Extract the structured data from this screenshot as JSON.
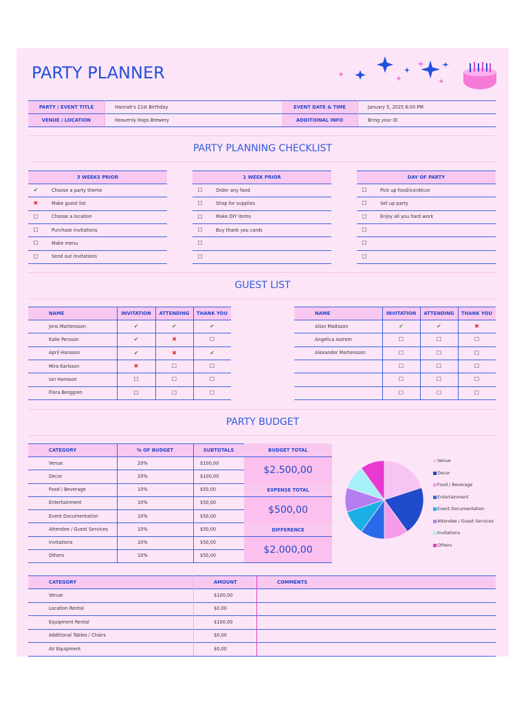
{
  "header": {
    "title": "PARTY PLANNER",
    "fields": [
      {
        "label": "PARTY / EVENT TITLE",
        "value": "Hannah's 21st Birthday"
      },
      {
        "label": "EVENT DATE & TIME",
        "value": "January 5, 2025 6:00 PM"
      },
      {
        "label": "VENUE / LOCATION",
        "value": "Heavenly Hops Brewery"
      },
      {
        "label": "ADDITIONAL INFO",
        "value": "Bring your ID"
      }
    ]
  },
  "symbols": {
    "yes": {
      "text": "✔",
      "color": "#3a8a2a"
    },
    "no": {
      "text": "✖",
      "color": "#e53030"
    },
    "open": {
      "text": "☐",
      "color": "#333333"
    }
  },
  "checklist": {
    "title": "PARTY PLANNING CHECKLIST",
    "columns": [
      {
        "heading": "3 WEEKS PRIOR",
        "items": [
          {
            "status": "yes",
            "text": "Choose a party theme"
          },
          {
            "status": "no",
            "text": "Make guest list"
          },
          {
            "status": "open",
            "text": "Choose a location"
          },
          {
            "status": "open",
            "text": "Purchase invitations"
          },
          {
            "status": "open",
            "text": "Make menu"
          },
          {
            "status": "open",
            "text": "Send out invitations"
          }
        ]
      },
      {
        "heading": "1 WEEK PRIOR",
        "items": [
          {
            "status": "open",
            "text": "Order any food"
          },
          {
            "status": "open",
            "text": "Shop for supplies"
          },
          {
            "status": "open",
            "text": "Make DIY items"
          },
          {
            "status": "open",
            "text": "Buy thank you cards"
          },
          {
            "status": "open"
          },
          {
            "status": "open"
          }
        ]
      },
      {
        "heading": "DAY OF PARTY",
        "items": [
          {
            "status": "open",
            "text": "Pick up food/ice/décor"
          },
          {
            "status": "open",
            "text": "Set up party"
          },
          {
            "status": "open",
            "text": "Enjoy all you hard work"
          },
          {
            "status": "open"
          },
          {
            "status": "open"
          },
          {
            "status": "open"
          }
        ]
      }
    ]
  },
  "guest_list": {
    "title": "GUEST LIST",
    "headers": [
      "NAME",
      "INVITATION",
      "ATTENDING",
      "THANK YOU"
    ],
    "tables": [
      [
        {
          "name": "Jens Martensson",
          "marks": [
            "yes",
            "yes",
            "yes"
          ]
        },
        {
          "name": "Kalle Persson",
          "marks": [
            "yes",
            "no",
            "open"
          ]
        },
        {
          "name": "April Hansson",
          "marks": [
            "yes",
            "no",
            "yes"
          ]
        },
        {
          "name": "Mira Karlsson",
          "marks": [
            "no",
            "open",
            "open"
          ]
        },
        {
          "name": "Ian Hansson",
          "marks": [
            "open",
            "open",
            "open"
          ]
        },
        {
          "name": "Flora Berggren",
          "marks": [
            "open",
            "open",
            "open"
          ]
        }
      ],
      [
        {
          "name": "Allan Mattsson",
          "marks": [
            "yes",
            "yes",
            "no"
          ]
        },
        {
          "name": "Angelica Astrom",
          "marks": [
            "open",
            "open",
            "open"
          ]
        },
        {
          "name": "Alexander Martensson",
          "marks": [
            "open",
            "open",
            "open"
          ]
        },
        {
          "marks": [
            "open",
            "open",
            "open"
          ]
        },
        {
          "marks": [
            "open",
            "open",
            "open"
          ]
        },
        {
          "marks": [
            "open",
            "open",
            "open"
          ]
        }
      ]
    ]
  },
  "budget": {
    "title": "PARTY BUDGET",
    "headers": [
      "CATEGORY",
      "% OF BUDGET",
      "SUBTOTALS"
    ],
    "rows": [
      {
        "category": "Venue",
        "percent": "20%",
        "subtotal": "$100,00"
      },
      {
        "category": "Decor",
        "percent": "20%",
        "subtotal": "$100,00"
      },
      {
        "category": "Food / Beverage",
        "percent": "10%",
        "subtotal": "$50,00"
      },
      {
        "category": "Entertainment",
        "percent": "10%",
        "subtotal": "$50,00"
      },
      {
        "category": "Event Documentation",
        "percent": "10%",
        "subtotal": "$50,00"
      },
      {
        "category": "Attendee / Guest Services",
        "percent": "10%",
        "subtotal": "$50,00"
      },
      {
        "category": "Invitations",
        "percent": "10%",
        "subtotal": "$50,00"
      },
      {
        "category": "Others",
        "percent": "10%",
        "subtotal": "$50,00"
      }
    ],
    "totals": [
      {
        "label": "BUDGET TOTAL",
        "value": "$2.500,00"
      },
      {
        "label": "EXPENSE TOTAL",
        "value": "$500,00"
      },
      {
        "label": "DIFFERENCE",
        "value": "$2.000,00"
      }
    ]
  },
  "chart_data": {
    "type": "pie",
    "values": [
      20,
      20,
      10,
      10,
      10,
      10,
      10,
      10
    ],
    "colors": [
      "#f7c4f4",
      "#1f4bcc",
      "#f59ce8",
      "#2b6ae8",
      "#1ab0e6",
      "#b47ef0",
      "#a8f0f8",
      "#e83ad0"
    ]
  },
  "expenses": {
    "headers": [
      "CATEGORY",
      "AMOUNT",
      "COMMENTS"
    ],
    "rows": [
      [
        "Venue",
        "$100,00"
      ],
      [
        "Location Rental",
        "$0,00"
      ],
      [
        "Equipment Rental",
        "$100,00"
      ],
      [
        "Additional Tables / Chairs",
        "$0,00"
      ],
      [
        "AV Equipment",
        "$0,00"
      ]
    ]
  }
}
